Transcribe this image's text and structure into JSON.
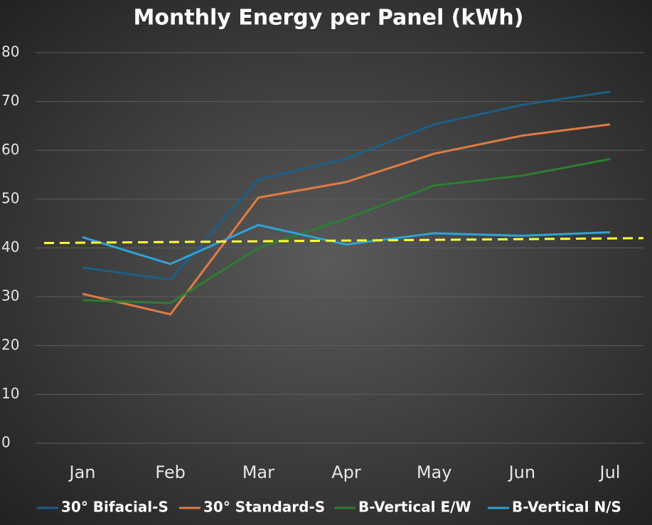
{
  "chart_data": {
    "type": "line",
    "title": "Monthly Energy per Panel (kWh)",
    "categories": [
      "Jan",
      "Feb",
      "Mar",
      "Apr",
      "May",
      "Jun",
      "Jul"
    ],
    "series": [
      {
        "name": "30° Bifacial-S",
        "color": "#1d5f88",
        "values": [
          36,
          33.5,
          54,
          58.3,
          65.3,
          69.3,
          72
        ]
      },
      {
        "name": "30° Standard-S",
        "color": "#e07b45",
        "values": [
          30.6,
          26.4,
          50.3,
          53.5,
          59.3,
          63,
          65.3
        ]
      },
      {
        "name": "B-Vertical E/W",
        "color": "#2e7d32",
        "values": [
          29.3,
          28.7,
          40,
          46,
          52.8,
          54.8,
          58.2
        ]
      },
      {
        "name": "B-Vertical N/S",
        "color": "#2ea3d6",
        "values": [
          42.2,
          36.7,
          44.7,
          40.7,
          43,
          42.5,
          43.2
        ]
      }
    ],
    "trendline": {
      "values": [
        41,
        42
      ],
      "color": "#ffff33"
    },
    "ylim": [
      0,
      80
    ],
    "yticks": [
      0,
      10,
      20,
      30,
      40,
      50,
      60,
      70,
      80
    ],
    "grid": true,
    "legend": "bottom"
  }
}
